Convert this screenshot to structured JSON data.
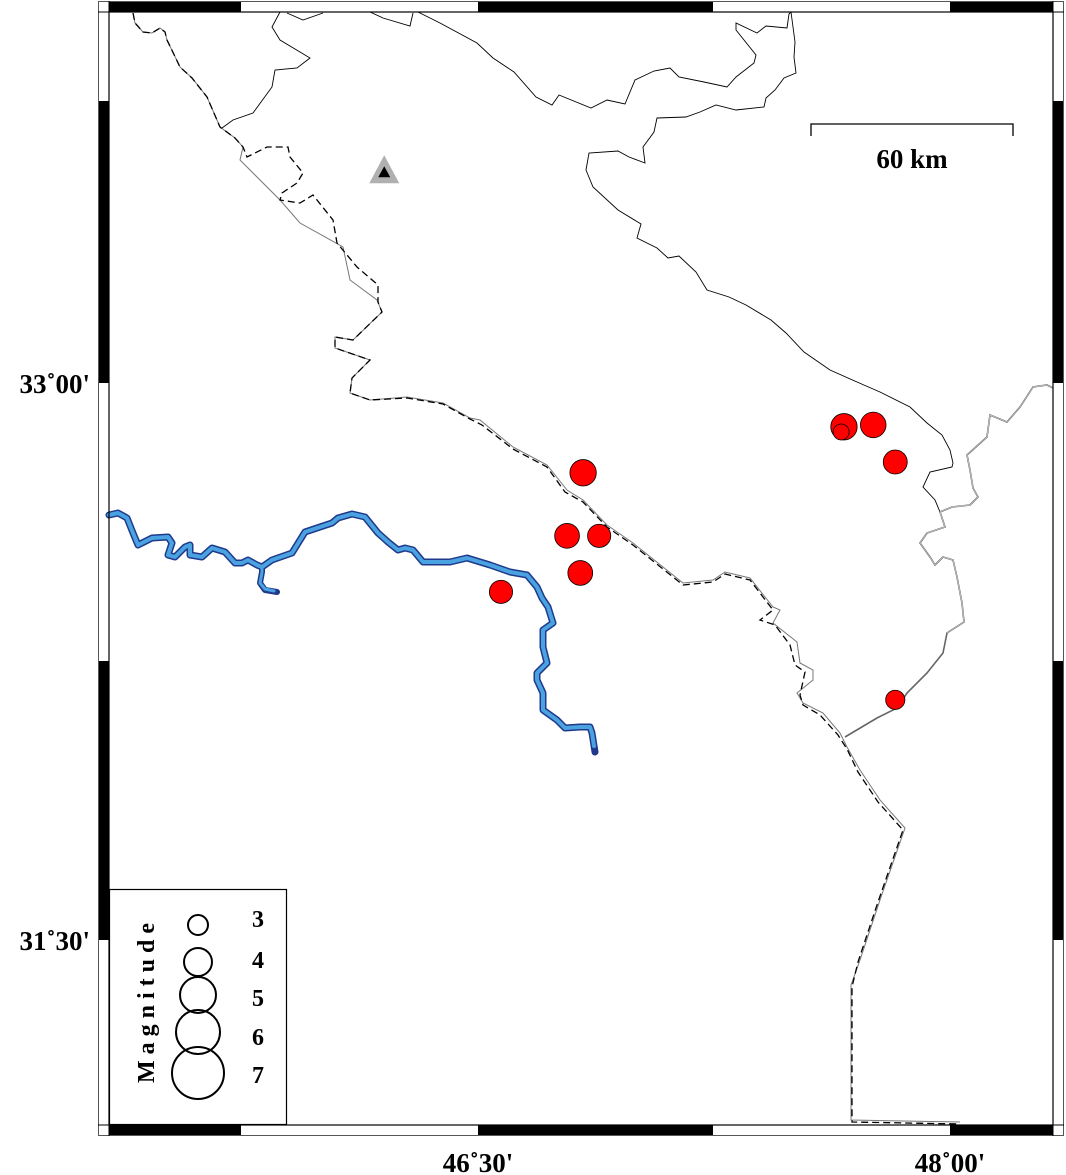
{
  "map": {
    "projection_bounds": {
      "lon_min": 45.3333,
      "lon_max": 48.3333,
      "lat_min": 31.0,
      "lat_max": 34.0
    },
    "axis_labels": {
      "left": [
        {
          "text": "33˚00'",
          "lat": 33.0
        },
        {
          "text": "31˚30'",
          "lat": 31.5
        }
      ],
      "bottom": [
        {
          "text": "46˚30'",
          "lon": 46.5
        },
        {
          "text": "48˚00'",
          "lon": 48.0
        }
      ]
    },
    "scale_bar": {
      "label": "60 km"
    },
    "colors": {
      "event_fill": "#ff0000",
      "river_fill": "#4aa3e0",
      "river_edge": "#1f3a8c",
      "station_outer": "#b0b0b0",
      "station_inner": "#000000"
    },
    "station": {
      "icon": "triangle-station-icon",
      "lon": 46.208,
      "lat": 33.568
    },
    "events": [
      {
        "lon": 46.84,
        "lat": 32.758,
        "mag": 3.8
      },
      {
        "lon": 46.789,
        "lat": 32.588,
        "mag": 3.6
      },
      {
        "lon": 46.891,
        "lat": 32.588,
        "mag": 3.4
      },
      {
        "lon": 46.831,
        "lat": 32.488,
        "mag": 3.6
      },
      {
        "lon": 46.579,
        "lat": 32.437,
        "mag": 3.4
      },
      {
        "lon": 47.669,
        "lat": 32.882,
        "mag": 3.8
      },
      {
        "lon": 47.66,
        "lat": 32.868,
        "mag": 2.5
      },
      {
        "lon": 47.762,
        "lat": 32.887,
        "mag": 3.7
      },
      {
        "lon": 47.832,
        "lat": 32.787,
        "mag": 3.5
      },
      {
        "lon": 47.832,
        "lat": 32.146,
        "mag": 2.9
      }
    ]
  },
  "legend": {
    "title": "Magnitude",
    "entries": [
      {
        "label": "3",
        "mag": 3
      },
      {
        "label": "4",
        "mag": 4
      },
      {
        "label": "5",
        "mag": 5
      },
      {
        "label": "6",
        "mag": 6
      },
      {
        "label": "7",
        "mag": 7
      }
    ]
  }
}
